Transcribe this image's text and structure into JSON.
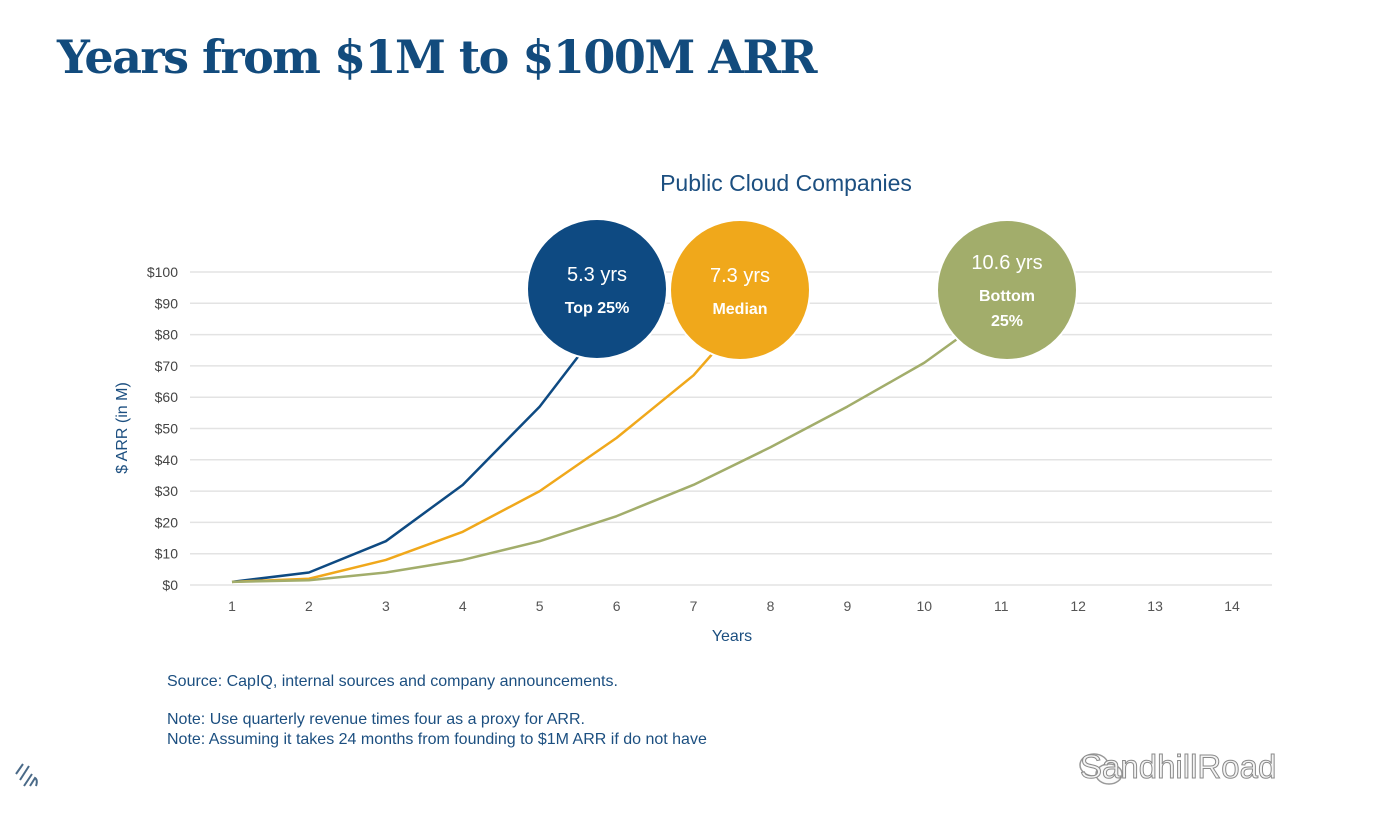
{
  "title": "Years from $1M to $100M ARR",
  "chart_data": {
    "type": "line",
    "title": "Public Cloud Companies",
    "xlabel": "Years",
    "ylabel": "$ ARR (in M)",
    "xlim": [
      1,
      14
    ],
    "ylim": [
      0,
      100
    ],
    "x_ticks": [
      "1",
      "2",
      "3",
      "4",
      "5",
      "6",
      "7",
      "8",
      "9",
      "10",
      "11",
      "12",
      "13",
      "14"
    ],
    "y_ticks": [
      "$0",
      "$10",
      "$20",
      "$30",
      "$40",
      "$50",
      "$60",
      "$70",
      "$80",
      "$90",
      "$100"
    ],
    "grid": "horizontal",
    "series": [
      {
        "name": "Top 25%",
        "color": "#0e4a82",
        "x": [
          1,
          2,
          3,
          4,
          5,
          5.5
        ],
        "y": [
          1,
          4,
          14,
          32,
          57,
          73
        ],
        "bubble": {
          "value": "5.3 yrs",
          "label": "Top 25%"
        }
      },
      {
        "name": "Median",
        "color": "#f0a81b",
        "x": [
          1,
          2,
          3,
          4,
          5,
          6,
          7,
          7.25
        ],
        "y": [
          1,
          2,
          8,
          17,
          30,
          47,
          67,
          74
        ],
        "bubble": {
          "value": "7.3 yrs",
          "label": "Median"
        }
      },
      {
        "name": "Bottom 25%",
        "color": "#a2ad6b",
        "x": [
          1,
          2,
          3,
          4,
          5,
          6,
          7,
          8,
          9,
          10,
          10.45
        ],
        "y": [
          1,
          1.5,
          4,
          8,
          14,
          22,
          32,
          44,
          57,
          71,
          79
        ],
        "bubble": {
          "value": "10.6 yrs",
          "label": "Bottom 25%",
          "label_lines": [
            "Bottom",
            "25%"
          ]
        }
      }
    ]
  },
  "notes": {
    "source": "Source: CapIQ, internal sources and company announcements.",
    "note1": "Note: Use quarterly revenue times four as a proxy for ARR.",
    "note2": "Note: Assuming it takes 24 months from founding to $1M ARR if do not have"
  },
  "watermark": "SandhillRoad"
}
